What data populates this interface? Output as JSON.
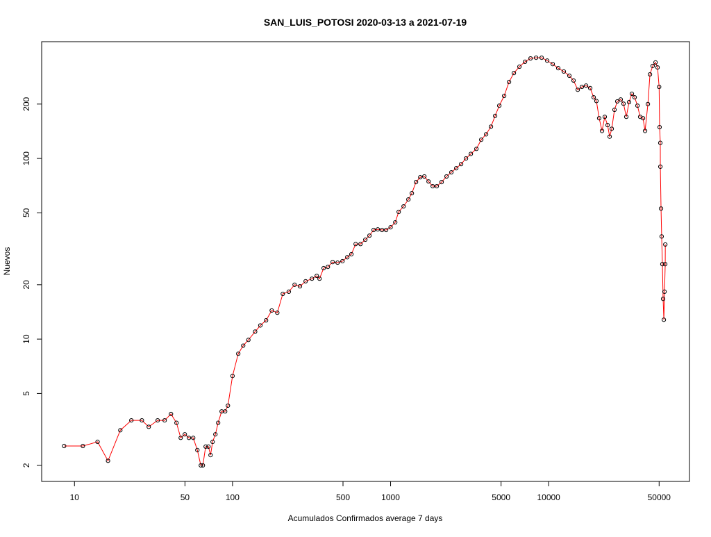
{
  "chart_data": {
    "type": "line",
    "title": "SAN_LUIS_POTOSI 2020-03-13 a 2021-07-19",
    "x_label": "Acumulados Confirmados average  7  days",
    "y_label": "Nuevos",
    "log_x": true,
    "log_y": true,
    "color": "#ff0000",
    "marker_color": "#000000",
    "xlim": [
      6.2,
      77800
    ],
    "ylim": [
      1.63,
      443
    ],
    "xticks": [
      10,
      50,
      100,
      500,
      1000,
      5000,
      10000,
      50000
    ],
    "yticks": [
      2,
      5,
      10,
      20,
      50,
      100,
      200
    ],
    "x": [
      8.6,
      11.3,
      14.0,
      16.3,
      19.5,
      22.9,
      26.7,
      29.5,
      33.6,
      37.2,
      40.8,
      44.2,
      47.0,
      49.9,
      53.0,
      56.4,
      59.9,
      63.0,
      64.9,
      67.6,
      70.4,
      72.6,
      74.8,
      77.9,
      81.1,
      85.3,
      89.8,
      93.5,
      100,
      108.7,
      116.8,
      126,
      139,
      150,
      163,
      177,
      192,
      208,
      227,
      247,
      267,
      290,
      318,
      341,
      355,
      377,
      401,
      430,
      462,
      496,
      532,
      565,
      601,
      645,
      692,
      735,
      781,
      830,
      882,
      937,
      1000,
      1070,
      1125,
      1208,
      1296,
      1363,
      1448,
      1540,
      1635,
      1738,
      1846,
      1960,
      2103,
      2259,
      2424,
      2603,
      2794,
      2999,
      3220,
      3490,
      3746,
      4020,
      4315,
      4585,
      4873,
      5230,
      5614,
      6026,
      6534,
      7085,
      7682,
      8329,
      9030,
      9790,
      10610,
      11500,
      12470,
      13520,
      14370,
      15280,
      16230,
      17250,
      18320,
      19270,
      20050,
      20880,
      21760,
      22650,
      23600,
      24320,
      25070,
      26100,
      27190,
      28570,
      29760,
      30990,
      32270,
      33620,
      34990,
      36470,
      37930,
      39540,
      40740,
      42450,
      43750,
      45500,
      47430,
      48870,
      50000,
      50350,
      50870,
      50900,
      51410,
      51880,
      52420,
      52990,
      53560,
      54100,
      54640,
      54700
    ],
    "values": [
      2.56,
      2.56,
      2.7,
      2.12,
      3.13,
      3.55,
      3.55,
      3.27,
      3.55,
      3.55,
      3.85,
      3.44,
      2.84,
      2.97,
      2.84,
      2.84,
      2.43,
      2,
      2,
      2.54,
      2.54,
      2.28,
      2.7,
      2.97,
      3.44,
      3.98,
      3.98,
      4.28,
      6.25,
      8.3,
      9.2,
      9.9,
      11.0,
      11.9,
      12.7,
      14.4,
      14.0,
      17.8,
      18.3,
      20.0,
      19.6,
      20.9,
      21.6,
      22.4,
      21.6,
      24.7,
      25.1,
      26.7,
      26.5,
      27.0,
      28.4,
      29.5,
      33.6,
      33.6,
      35.5,
      37.4,
      40.2,
      40.5,
      40.2,
      40.2,
      41.6,
      44.3,
      50.6,
      54.3,
      59.3,
      64.2,
      74.0,
      78.7,
      79.5,
      74.6,
      70.2,
      70.2,
      74.0,
      79.5,
      83.8,
      88.3,
      93.1,
      100,
      106,
      113,
      127,
      136,
      150,
      172,
      196,
      222,
      265,
      297,
      322,
      343,
      358,
      361,
      361,
      348,
      333,
      316,
      303,
      287,
      270,
      240,
      249,
      253,
      245,
      218,
      208,
      167,
      142,
      170,
      153,
      132,
      146,
      186,
      207,
      212,
      201,
      170,
      205,
      228,
      218,
      196,
      170,
      167,
      142,
      200,
      292,
      325,
      340,
      319,
      249,
      149,
      122,
      90,
      52.8,
      37.0,
      26.0,
      16.7,
      12.8,
      18.3,
      26.0,
      33.4
    ]
  }
}
